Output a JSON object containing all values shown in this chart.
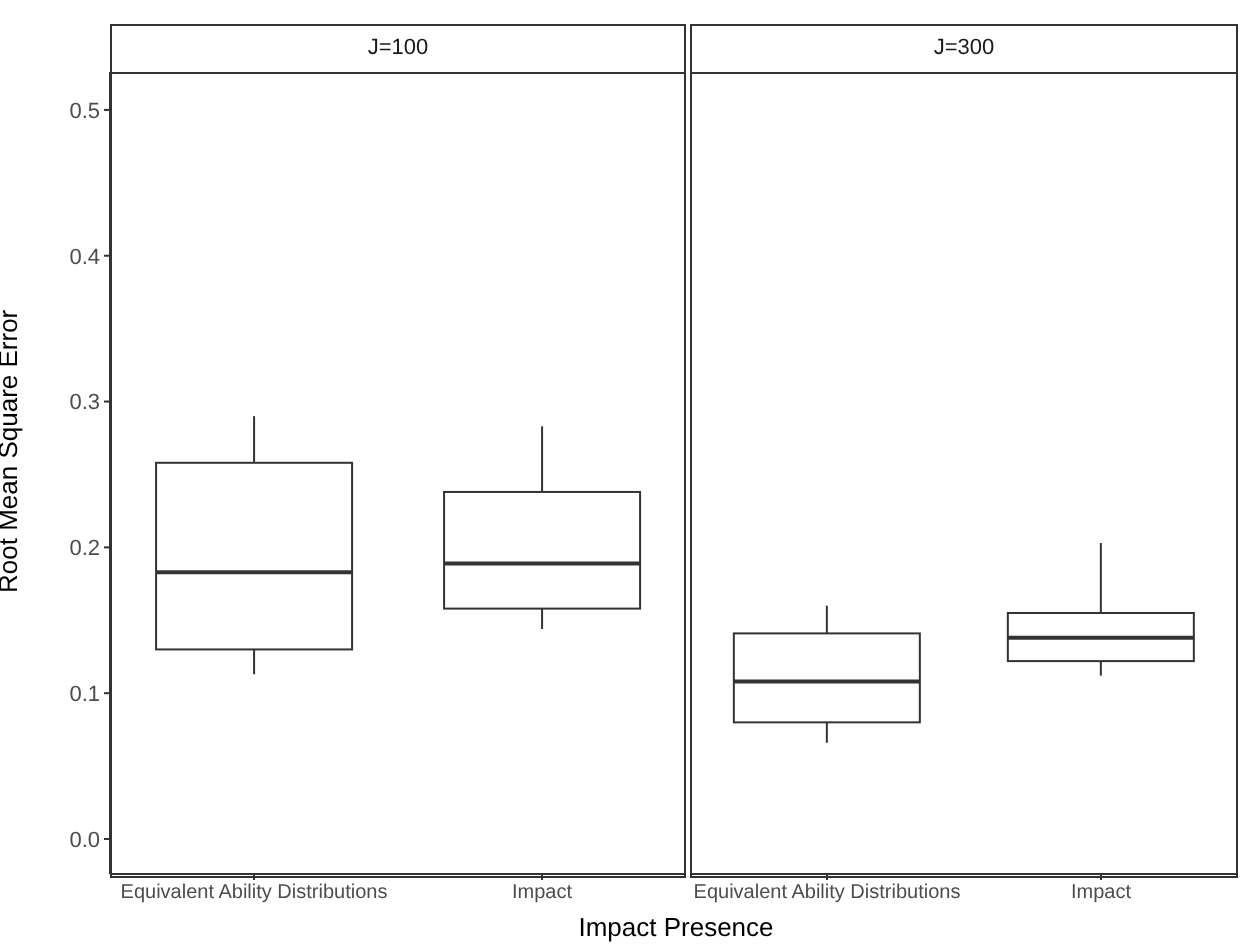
{
  "chart_data": [
    {
      "type": "box",
      "title": "J=100",
      "xlabel": "Impact Presence",
      "ylabel": "Root Mean Square Error",
      "categories": [
        "Equivalent Ability Distributions",
        "Impact"
      ],
      "boxes": [
        {
          "low": 0.113,
          "q1": 0.13,
          "median": 0.183,
          "q3": 0.258,
          "high": 0.29
        },
        {
          "low": 0.144,
          "q1": 0.158,
          "median": 0.189,
          "q3": 0.238,
          "high": 0.283
        }
      ],
      "color": "#333333",
      "ylim": [
        -0.024,
        0.526
      ],
      "yticks": [
        {
          "value": 0,
          "label": "0.0"
        },
        0.1,
        0.2,
        0.3,
        0.4,
        0.5
      ],
      "grid": false
    },
    {
      "type": "box",
      "title": "J=300",
      "categories": [
        "Equivalent Ability Distributions",
        "Impact"
      ],
      "boxes": [
        {
          "low": 0.066,
          "q1": 0.08,
          "median": 0.108,
          "q3": 0.141,
          "high": 0.16
        },
        {
          "low": 0.112,
          "q1": 0.122,
          "median": 0.138,
          "q3": 0.155,
          "high": 0.203
        }
      ],
      "color": "#333333",
      "ylim": [
        -0.024,
        0.526
      ],
      "grid": false,
      "tick_labels": "x"
    }
  ]
}
